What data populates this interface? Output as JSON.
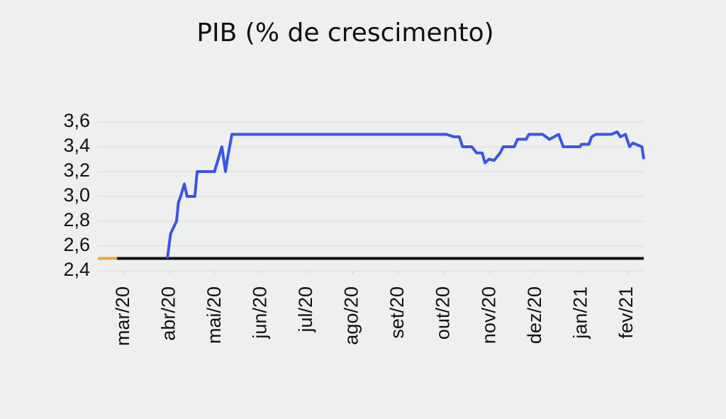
{
  "chart_data": {
    "type": "line",
    "title": "PIB (% de crescimento)",
    "xlim": [
      -0.57,
      11.36
    ],
    "xticks": [
      {
        "value": 0,
        "label": "mar/20"
      },
      {
        "value": 1,
        "label": "abr/20"
      },
      {
        "value": 2,
        "label": "mai/20"
      },
      {
        "value": 3,
        "label": "jun/20"
      },
      {
        "value": 4,
        "label": "jul/20"
      },
      {
        "value": 5,
        "label": "ago/20"
      },
      {
        "value": 6,
        "label": "set/20"
      },
      {
        "value": 7,
        "label": "out/20"
      },
      {
        "value": 8,
        "label": "nov/20"
      },
      {
        "value": 9,
        "label": "dez/20"
      },
      {
        "value": 10,
        "label": "jan/21"
      },
      {
        "value": 11,
        "label": "fev/21"
      }
    ],
    "ylim": [
      2.4,
      3.6
    ],
    "yticks": [
      {
        "value": 2.4,
        "label": "2,4"
      },
      {
        "value": 2.6,
        "label": "2,6"
      },
      {
        "value": 2.8,
        "label": "2,8"
      },
      {
        "value": 3.0,
        "label": "3,0"
      },
      {
        "value": 3.2,
        "label": "3,2"
      },
      {
        "value": 3.4,
        "label": "3,4"
      },
      {
        "value": 3.6,
        "label": "3,6"
      }
    ],
    "grid": true,
    "series": [
      {
        "color": "#f4a142",
        "x": [
          -0.57,
          -0.15
        ],
        "values": [
          2.5,
          2.5
        ]
      },
      {
        "color": "#111111",
        "x": [
          -0.15,
          11.36
        ],
        "values": [
          2.5,
          2.5
        ]
      },
      {
        "color": "#3b55e6",
        "x": [
          0.95,
          1.02,
          1.15,
          1.19,
          1.24,
          1.32,
          1.38,
          1.55,
          1.6,
          1.98,
          2.14,
          2.22,
          2.26,
          2.36,
          7.05,
          7.21,
          7.33,
          7.4,
          7.6,
          7.71,
          7.83,
          7.89,
          7.98,
          8.09,
          8.22,
          8.29,
          8.53,
          8.6,
          8.79,
          8.85,
          9.15,
          9.3,
          9.5,
          9.6,
          9.97,
          10.0,
          10.16,
          10.22,
          10.31,
          10.65,
          10.78,
          10.85,
          10.96,
          11.05,
          11.12,
          11.32,
          11.36
        ],
        "values": [
          2.5,
          2.7,
          2.8,
          2.95,
          3.0,
          3.1,
          3.0,
          3.0,
          3.2,
          3.2,
          3.4,
          3.2,
          3.3,
          3.5,
          3.5,
          3.48,
          3.48,
          3.4,
          3.4,
          3.35,
          3.35,
          3.27,
          3.3,
          3.29,
          3.35,
          3.4,
          3.4,
          3.46,
          3.46,
          3.5,
          3.5,
          3.46,
          3.5,
          3.4,
          3.4,
          3.42,
          3.42,
          3.48,
          3.5,
          3.5,
          3.52,
          3.48,
          3.5,
          3.4,
          3.43,
          3.4,
          3.3
        ]
      }
    ]
  }
}
